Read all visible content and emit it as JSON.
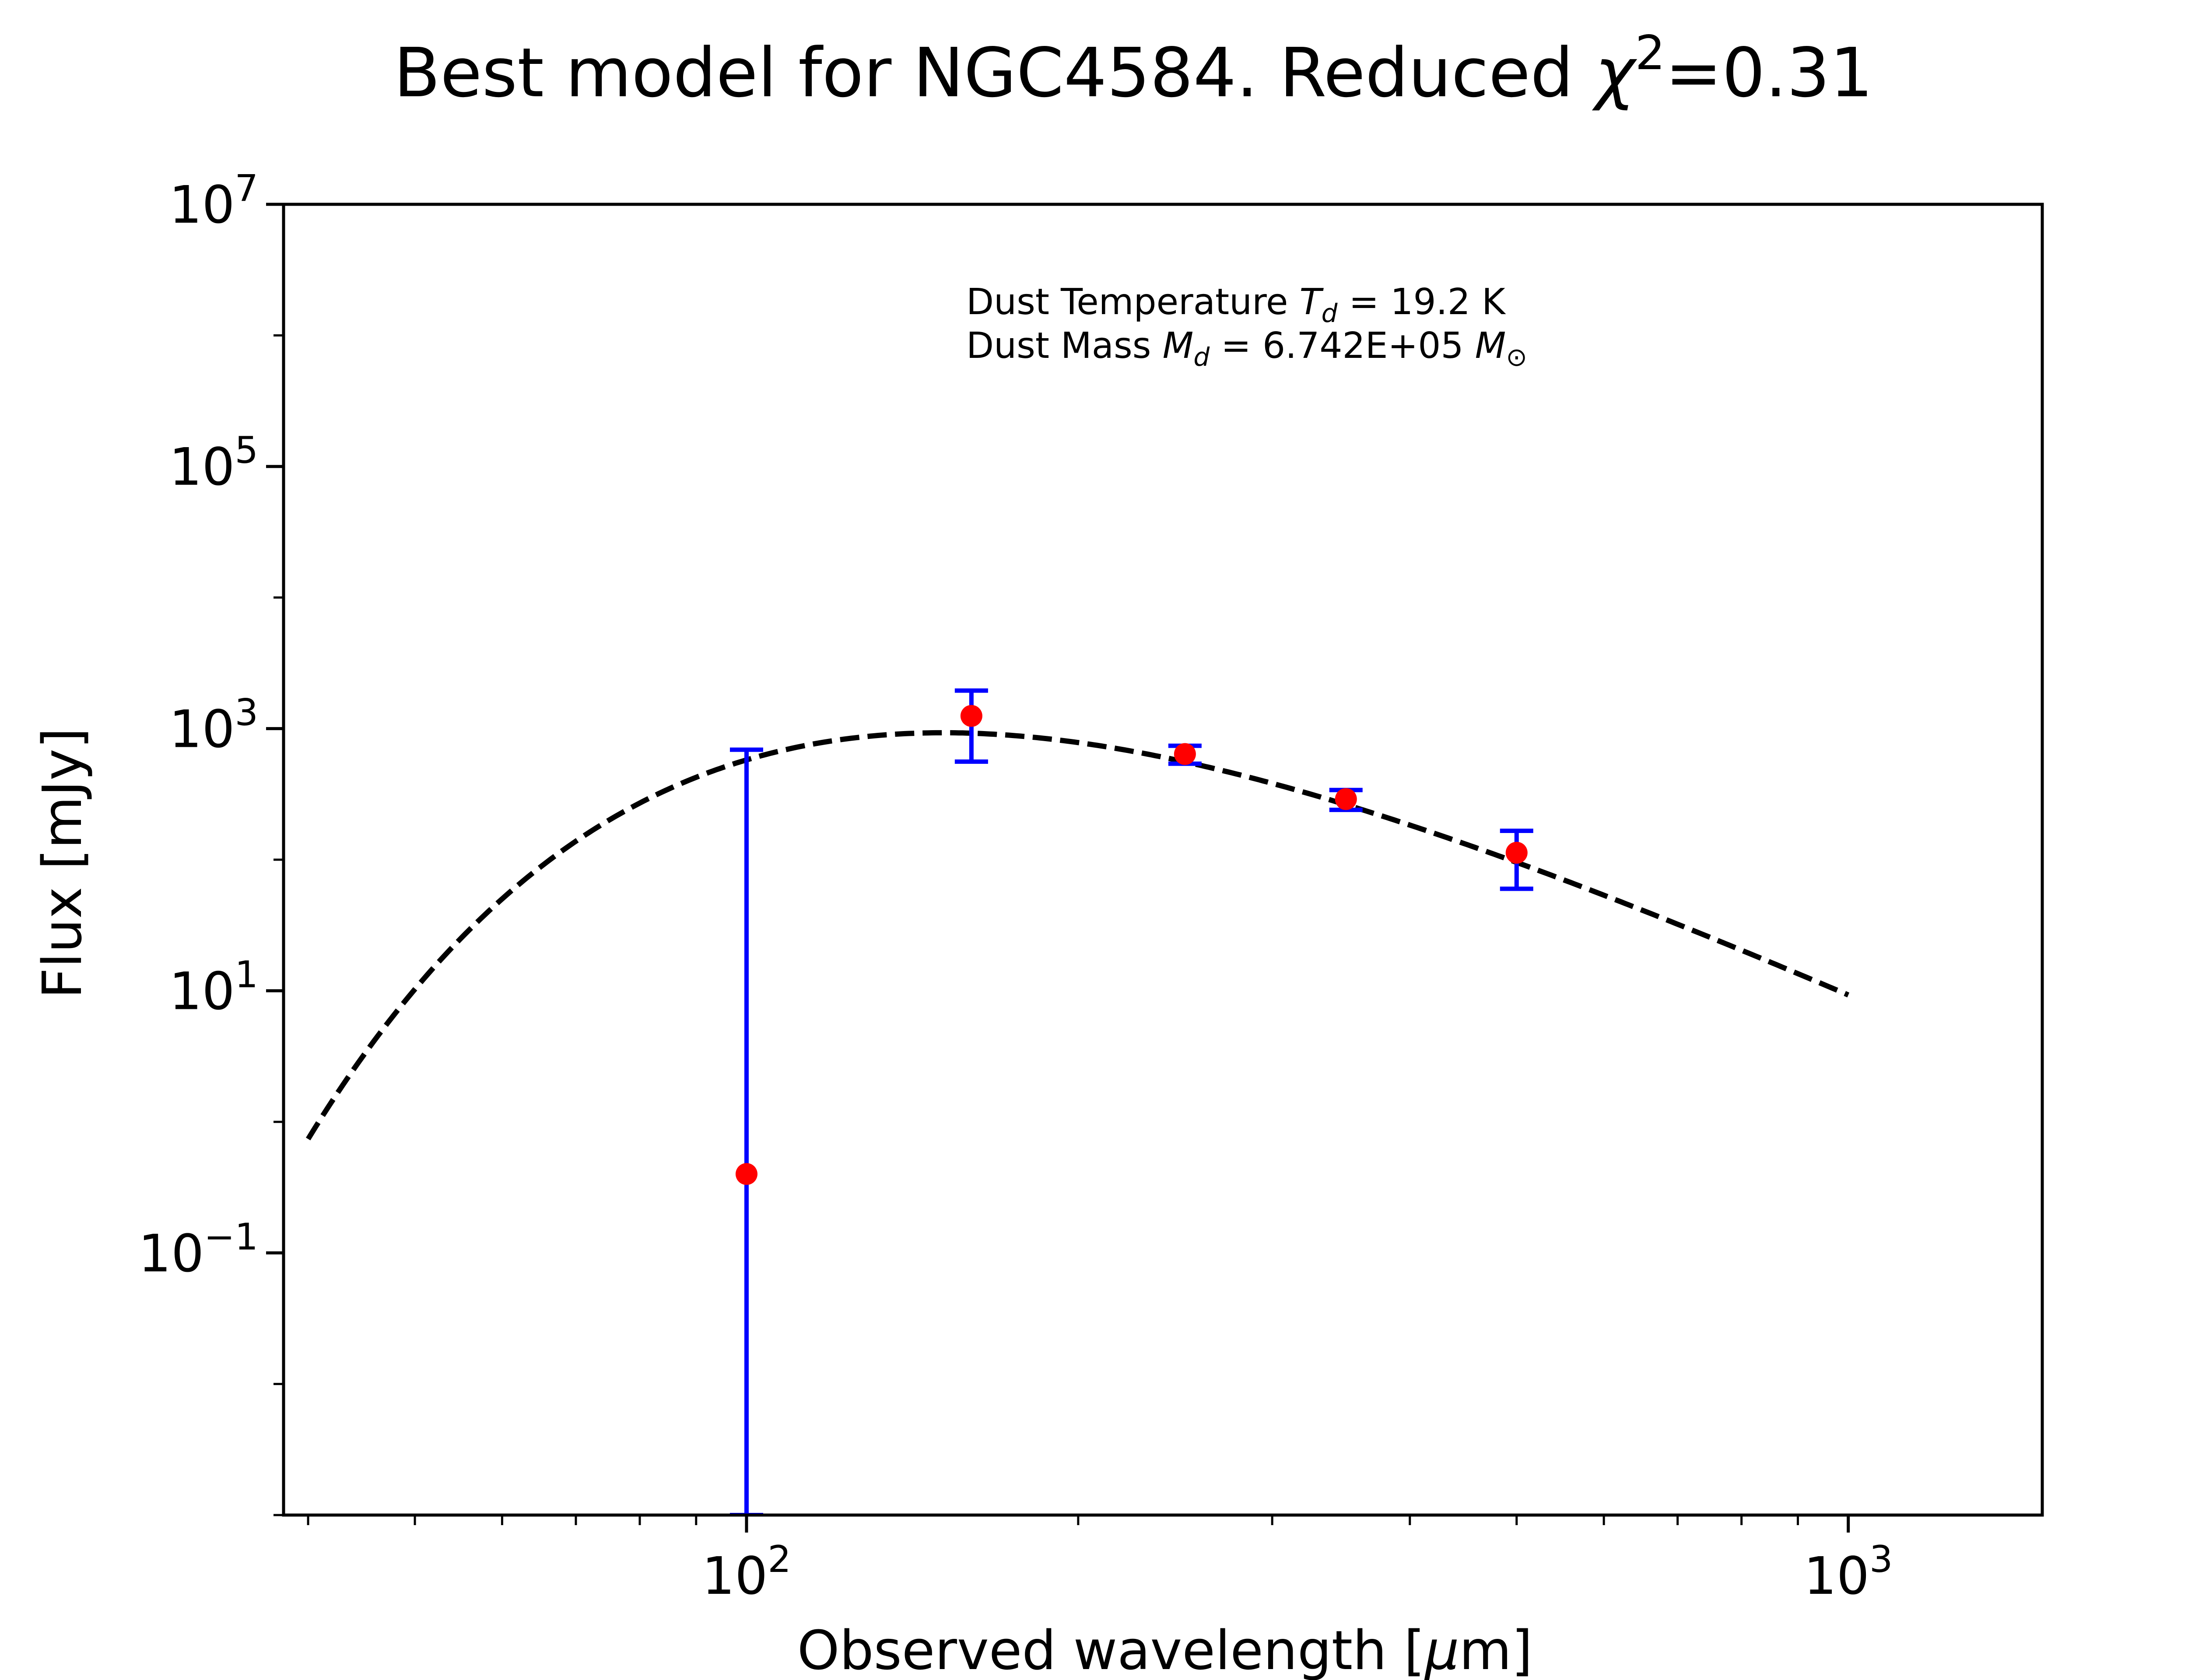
{
  "chart_data": {
    "type": "scatter",
    "title": {
      "prefix": "Best model for NGC4584. Reduced ",
      "chi": "χ",
      "chi_exp": "2",
      "suffix": "=0.31"
    },
    "xlabel": {
      "prefix": "Observed wavelength [",
      "unit_mu": "μ",
      "unit_rest": "m]"
    },
    "ylabel": "Flux [mJy]",
    "xscale": "log",
    "yscale": "log",
    "xlim": [
      38,
      1500
    ],
    "ylim": [
      0.001,
      10000000
    ],
    "x_ticks": [
      {
        "value": 100,
        "base": "10",
        "exp": "2"
      },
      {
        "value": 1000,
        "base": "10",
        "exp": "3"
      }
    ],
    "x_minor_ticks": [
      40,
      50,
      60,
      70,
      80,
      90,
      200,
      300,
      400,
      500,
      600,
      700,
      800,
      900
    ],
    "y_ticks": [
      {
        "value": 0.1,
        "base": "10",
        "exp": "−1"
      },
      {
        "value": 10,
        "base": "10",
        "exp": "1"
      },
      {
        "value": 1000,
        "base": "10",
        "exp": "3"
      },
      {
        "value": 100000,
        "base": "10",
        "exp": "5"
      },
      {
        "value": 10000000,
        "base": "10",
        "exp": "7"
      }
    ],
    "y_minor_ticks": [
      0.001,
      0.01,
      1,
      100,
      10000,
      1000000
    ],
    "model": {
      "name": "",
      "style": "dashed",
      "color": "#000000",
      "temperature_K": 19.2,
      "beta": 2.0,
      "peak_flux_mJy": 930,
      "x_range": [
        40,
        1000
      ]
    },
    "points": [
      {
        "x": 100,
        "y": 0.4,
        "yerr_low": 0.001,
        "yerr_high": 690
      },
      {
        "x": 160,
        "y": 1250,
        "yerr_low": 560,
        "yerr_high": 1950
      },
      {
        "x": 250,
        "y": 640,
        "yerr_low": 540,
        "yerr_high": 740
      },
      {
        "x": 350,
        "y": 290,
        "yerr_low": 240,
        "yerr_high": 340
      },
      {
        "x": 500,
        "y": 113,
        "yerr_low": 60,
        "yerr_high": 166
      }
    ],
    "point_color": "#ff0000",
    "errorbar_color": "#0000ff",
    "annotation": {
      "temp_prefix": "Dust Temperature ",
      "temp_symbol": "T",
      "temp_sub": "d",
      "temp_value": " = 19.2 K",
      "mass_prefix": "Dust Mass ",
      "mass_symbol": "M",
      "mass_sub": "d",
      "mass_value": " = 6.742E+05 ",
      "mass_unit_symbol": "M",
      "mass_unit_sub": "⊙"
    },
    "grid": false,
    "legend": "none"
  }
}
